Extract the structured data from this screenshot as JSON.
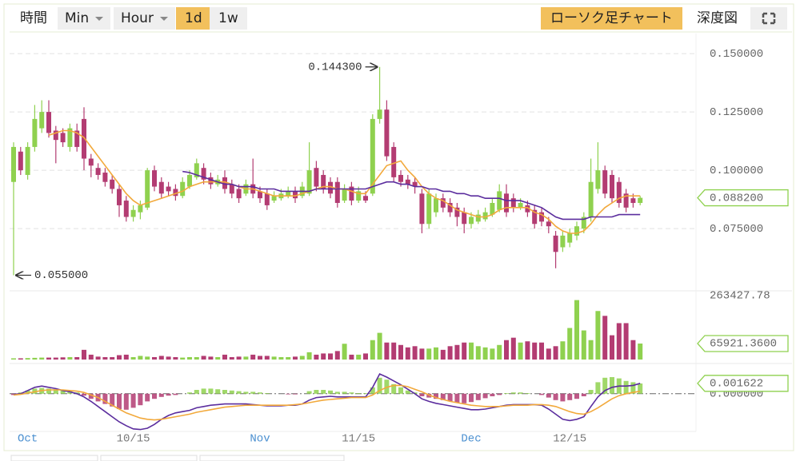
{
  "toolbar": {
    "time": "時間",
    "interval_min": "Min",
    "interval_hour": "Hour",
    "interval_day": "1d",
    "interval_week": "1w",
    "candle_chart": "ローソク足チャート",
    "depth_chart": "深度図"
  },
  "chart_data": [
    {
      "type": "candlestick",
      "categories": [
        null,
        null,
        "Oct",
        null,
        null,
        null,
        null,
        null,
        null,
        null,
        null,
        null,
        null,
        null,
        null,
        null,
        null,
        "10/15",
        null,
        null,
        null,
        null,
        null,
        null,
        null,
        null,
        null,
        null,
        null,
        null,
        null,
        null,
        null,
        null,
        null,
        "Nov",
        null,
        null,
        null,
        null,
        null,
        null,
        null,
        null,
        null,
        null,
        null,
        null,
        null,
        "11/15",
        null,
        null,
        null,
        null,
        null,
        null,
        null,
        null,
        null,
        null,
        null,
        null,
        null,
        null,
        null,
        "Dec",
        null,
        null,
        null,
        null,
        null,
        null,
        null,
        null,
        null,
        null,
        null,
        null,
        null,
        "12/15",
        null,
        null,
        null,
        null,
        null,
        null,
        null,
        null,
        null,
        null
      ],
      "open": [
        0.095,
        0.108,
        0.098,
        0.11,
        0.118,
        0.125,
        0.117,
        0.116,
        0.11,
        0.117,
        0.122,
        0.105,
        0.101,
        0.099,
        0.096,
        0.092,
        0.087,
        0.08,
        0.082,
        0.084,
        0.1,
        0.095,
        0.093,
        0.092,
        0.089,
        0.093,
        0.097,
        0.101,
        0.097,
        0.094,
        0.097,
        0.094,
        0.092,
        0.09,
        0.094,
        0.091,
        0.09,
        0.087,
        0.088,
        0.089,
        0.091,
        0.089,
        0.09,
        0.101,
        0.098,
        0.095,
        0.095,
        0.087,
        0.093,
        0.087,
        0.089,
        0.09,
        0.122,
        0.126,
        0.11,
        0.098,
        0.096,
        0.095,
        0.09,
        0.077,
        0.082,
        0.088,
        0.086,
        0.084,
        0.082,
        0.077,
        0.078,
        0.079,
        0.081,
        0.083,
        0.09,
        0.088,
        0.084,
        0.085,
        0.083,
        0.082,
        0.078,
        0.072,
        0.067,
        0.069,
        0.072,
        0.075,
        0.08,
        0.092,
        0.1,
        0.098,
        0.095,
        0.09,
        0.088,
        0.086
      ],
      "high": [
        0.112,
        0.11,
        0.112,
        0.128,
        0.13,
        0.13,
        0.119,
        0.118,
        0.12,
        0.12,
        0.127,
        0.107,
        0.103,
        0.101,
        0.098,
        0.094,
        0.089,
        0.085,
        0.087,
        0.101,
        0.102,
        0.097,
        0.095,
        0.094,
        0.097,
        0.1,
        0.105,
        0.103,
        0.099,
        0.098,
        0.1,
        0.096,
        0.094,
        0.096,
        0.105,
        0.093,
        0.092,
        0.091,
        0.092,
        0.093,
        0.093,
        0.095,
        0.112,
        0.104,
        0.1,
        0.097,
        0.097,
        0.094,
        0.095,
        0.093,
        0.091,
        0.124,
        0.1443,
        0.13,
        0.112,
        0.1,
        0.098,
        0.097,
        0.092,
        0.092,
        0.09,
        0.09,
        0.088,
        0.086,
        0.084,
        0.082,
        0.083,
        0.084,
        0.088,
        0.094,
        0.094,
        0.09,
        0.088,
        0.087,
        0.085,
        0.084,
        0.08,
        0.074,
        0.074,
        0.075,
        0.078,
        0.082,
        0.105,
        0.112,
        0.102,
        0.1,
        0.097,
        0.092,
        0.09,
        0.089
      ],
      "low": [
        0.055,
        0.098,
        0.096,
        0.108,
        0.116,
        0.114,
        0.103,
        0.11,
        0.108,
        0.108,
        0.1,
        0.097,
        0.096,
        0.093,
        0.09,
        0.08,
        0.078,
        0.078,
        0.079,
        0.083,
        0.091,
        0.088,
        0.089,
        0.087,
        0.088,
        0.092,
        0.096,
        0.094,
        0.092,
        0.093,
        0.09,
        0.088,
        0.086,
        0.089,
        0.088,
        0.086,
        0.083,
        0.086,
        0.087,
        0.088,
        0.086,
        0.088,
        0.089,
        0.091,
        0.09,
        0.088,
        0.084,
        0.086,
        0.085,
        0.086,
        0.086,
        0.089,
        0.12,
        0.104,
        0.095,
        0.093,
        0.092,
        0.09,
        0.073,
        0.075,
        0.08,
        0.082,
        0.08,
        0.076,
        0.073,
        0.075,
        0.077,
        0.078,
        0.08,
        0.082,
        0.08,
        0.082,
        0.083,
        0.08,
        0.075,
        0.076,
        0.073,
        0.058,
        0.065,
        0.067,
        0.07,
        0.073,
        0.078,
        0.09,
        0.088,
        0.086,
        0.084,
        0.082,
        0.084,
        0.085
      ],
      "close": [
        0.11,
        0.1,
        0.11,
        0.122,
        0.125,
        0.116,
        0.113,
        0.112,
        0.118,
        0.11,
        0.105,
        0.102,
        0.098,
        0.095,
        0.092,
        0.085,
        0.08,
        0.083,
        0.085,
        0.1,
        0.093,
        0.09,
        0.091,
        0.089,
        0.095,
        0.098,
        0.103,
        0.096,
        0.094,
        0.096,
        0.092,
        0.09,
        0.088,
        0.094,
        0.09,
        0.088,
        0.085,
        0.089,
        0.09,
        0.091,
        0.088,
        0.093,
        0.1,
        0.093,
        0.092,
        0.09,
        0.086,
        0.092,
        0.087,
        0.091,
        0.087,
        0.122,
        0.126,
        0.106,
        0.097,
        0.095,
        0.094,
        0.093,
        0.077,
        0.09,
        0.088,
        0.084,
        0.082,
        0.08,
        0.077,
        0.08,
        0.081,
        0.082,
        0.086,
        0.091,
        0.082,
        0.084,
        0.086,
        0.082,
        0.077,
        0.078,
        0.076,
        0.065,
        0.072,
        0.073,
        0.076,
        0.08,
        0.095,
        0.1,
        0.09,
        0.088,
        0.086,
        0.084,
        0.086,
        0.0882
      ],
      "up_color": "#8fd14f",
      "down_color": "#b33c72",
      "lines": [
        {
          "color": "#f2a93b",
          "values": [
            null,
            null,
            null,
            null,
            null,
            0.115,
            0.116,
            0.117,
            0.117,
            0.116,
            0.114,
            0.11,
            0.106,
            0.102,
            0.098,
            0.094,
            0.09,
            0.087,
            0.085,
            0.086,
            0.087,
            0.088,
            0.089,
            0.09,
            0.091,
            0.093,
            0.094,
            0.095,
            0.095,
            0.095,
            0.095,
            0.094,
            0.093,
            0.092,
            0.092,
            0.091,
            0.09,
            0.089,
            0.089,
            0.089,
            0.089,
            0.09,
            0.091,
            0.092,
            0.093,
            0.093,
            0.092,
            0.092,
            0.091,
            0.09,
            0.09,
            0.094,
            0.098,
            0.102,
            0.103,
            0.104,
            0.1,
            0.097,
            0.093,
            0.09,
            0.088,
            0.087,
            0.085,
            0.083,
            0.082,
            0.081,
            0.08,
            0.08,
            0.081,
            0.083,
            0.084,
            0.084,
            0.084,
            0.084,
            0.082,
            0.081,
            0.079,
            0.076,
            0.074,
            0.073,
            0.073,
            0.074,
            0.077,
            0.081,
            0.084,
            0.086,
            0.088,
            0.089,
            0.089,
            0.089
          ]
        },
        {
          "color": "#5b2d9e",
          "values": [
            null,
            null,
            null,
            null,
            null,
            null,
            null,
            null,
            null,
            null,
            null,
            null,
            null,
            null,
            null,
            null,
            null,
            null,
            null,
            null,
            null,
            null,
            null,
            null,
            0.0995,
            0.099,
            0.098,
            0.097,
            0.096,
            0.095,
            0.094,
            0.094,
            0.093,
            0.093,
            0.093,
            0.092,
            0.092,
            0.092,
            0.091,
            0.091,
            0.091,
            0.091,
            0.091,
            0.092,
            0.092,
            0.092,
            0.092,
            0.092,
            0.092,
            0.092,
            0.092,
            0.093,
            0.094,
            0.095,
            0.095,
            0.094,
            0.094,
            0.093,
            0.093,
            0.092,
            0.092,
            0.091,
            0.091,
            0.09,
            0.09,
            0.089,
            0.089,
            0.088,
            0.088,
            0.088,
            0.087,
            0.087,
            0.087,
            0.086,
            0.085,
            0.084,
            0.082,
            0.08,
            0.079,
            0.079,
            0.079,
            0.079,
            0.08,
            0.08,
            0.08,
            0.08,
            0.081,
            0.081,
            0.081,
            0.081
          ]
        }
      ],
      "ylim": [
        0.0497,
        0.1586
      ],
      "yticks": [
        {
          "value": 0.075,
          "label": "0.075000"
        },
        {
          "value": 0.1,
          "label": "0.100000"
        },
        {
          "value": 0.125,
          "label": "0.125000"
        },
        {
          "value": 0.15,
          "label": "0.150000"
        }
      ],
      "grid": true,
      "annotations": [
        {
          "value": 0.1443,
          "label": "0.144300"
        },
        {
          "value": 0.055,
          "label": "0.055000"
        },
        {
          "value": 0.0882,
          "label": "0.088200"
        }
      ]
    },
    {
      "type": "bar",
      "values": [
        5000,
        5000,
        6000,
        7000,
        8000,
        8000,
        8000,
        9000,
        10000,
        10000,
        40000,
        20000,
        12000,
        10000,
        10000,
        18000,
        20000,
        10000,
        15000,
        12000,
        10000,
        15000,
        12000,
        10000,
        8000,
        10000,
        10000,
        15000,
        12000,
        10000,
        20000,
        10000,
        12000,
        12000,
        20000,
        15000,
        15000,
        12000,
        10000,
        10000,
        12000,
        15000,
        30000,
        20000,
        25000,
        25000,
        35000,
        65000,
        20000,
        20000,
        25000,
        80000,
        110000,
        70000,
        70000,
        60000,
        50000,
        55000,
        45000,
        45000,
        50000,
        40000,
        55000,
        60000,
        70000,
        70000,
        55000,
        50000,
        45000,
        60000,
        80000,
        90000,
        70000,
        75000,
        70000,
        70000,
        45000,
        55000,
        75000,
        130000,
        245000,
        120000,
        80000,
        200000,
        180000,
        100000,
        150000,
        150000,
        80000,
        65921.36
      ],
      "ylim": [
        0,
        263427.78
      ],
      "yticks": [
        {
          "value": 263427.78,
          "label": "263427.78"
        }
      ],
      "grid": false,
      "annotations": [
        {
          "value": 65921.36,
          "label": "65921.3600"
        }
      ]
    },
    {
      "type": "combo",
      "histogram": [
        -0.0002,
        0.0002,
        0.0005,
        0.0008,
        0.0009,
        0.0008,
        0.0007,
        0.0005,
        0.0004,
        0.0002,
        -0.0003,
        -0.0008,
        -0.0012,
        -0.0016,
        -0.002,
        -0.0024,
        -0.0025,
        -0.0022,
        -0.0018,
        -0.0012,
        -0.0008,
        -0.0005,
        -0.0003,
        -0.0002,
        0,
        0.0002,
        0.0006,
        0.0008,
        0.0008,
        0.0007,
        0.0006,
        0.0005,
        0.0004,
        0.0003,
        0.0003,
        0.0002,
        0.0001,
        0,
        0,
        -0.0001,
        -0.0001,
        0,
        0.0004,
        0.0006,
        0.0006,
        0.0005,
        0.0003,
        0.0003,
        0.0002,
        0.0001,
        0.0001,
        0.001,
        0.0025,
        0.0022,
        0.0015,
        0.001,
        0.0005,
        0.0002,
        -0.0004,
        -0.0006,
        -0.0008,
        -0.001,
        -0.0012,
        -0.0014,
        -0.0015,
        -0.0013,
        -0.001,
        -0.0007,
        -0.0004,
        -0.0002,
        0.0001,
        0.0002,
        0.0002,
        0.0001,
        0,
        -0.0002,
        -0.0006,
        -0.001,
        -0.0012,
        -0.001,
        -0.0008,
        -0.0004,
        0.0006,
        0.0018,
        0.0025,
        0.0026,
        0.0024,
        0.002,
        0.0018,
        0.0016
      ],
      "lines": [
        {
          "color": "#5b2d9e",
          "values": [
            -0.0001,
            0,
            0.0005,
            0.001,
            0.0012,
            0.001,
            0.0008,
            0.0005,
            0.0003,
            0,
            -0.0005,
            -0.0012,
            -0.002,
            -0.0028,
            -0.0036,
            -0.0044,
            -0.005,
            -0.0055,
            -0.0056,
            -0.0054,
            -0.0048,
            -0.004,
            -0.0034,
            -0.003,
            -0.0028,
            -0.0026,
            -0.0022,
            -0.002,
            -0.0018,
            -0.0017,
            -0.0016,
            -0.0016,
            -0.0016,
            -0.0016,
            -0.0017,
            -0.0018,
            -0.0019,
            -0.0019,
            -0.0019,
            -0.0018,
            -0.0018,
            -0.0016,
            -0.001,
            -0.0006,
            -0.0005,
            -0.0004,
            -0.0005,
            -0.0005,
            -0.0005,
            -0.0005,
            -0.0005,
            0.001,
            0.0031,
            0.0026,
            0.002,
            0.0014,
            0.0007,
            0,
            -0.0008,
            -0.0012,
            -0.0015,
            -0.0017,
            -0.0019,
            -0.0021,
            -0.0023,
            -0.0025,
            -0.0025,
            -0.0024,
            -0.0022,
            -0.002,
            -0.0018,
            -0.0017,
            -0.0017,
            -0.0017,
            -0.0017,
            -0.0018,
            -0.0024,
            -0.0032,
            -0.004,
            -0.0042,
            -0.004,
            -0.0036,
            -0.002,
            -0.0005,
            0.0005,
            0.001,
            0.0012,
            0.0012,
            0.0013,
            0.001622
          ]
        },
        {
          "color": "#f2a93b",
          "values": [
            -0.0002,
            -0.0001,
            0.0001,
            0.0003,
            0.0005,
            0.0006,
            0.0006,
            0.0006,
            0.0005,
            0.0004,
            0.0002,
            -0.0002,
            -0.0006,
            -0.0012,
            -0.0018,
            -0.0024,
            -0.003,
            -0.0034,
            -0.0038,
            -0.004,
            -0.0041,
            -0.004,
            -0.0038,
            -0.0036,
            -0.0034,
            -0.0032,
            -0.0029,
            -0.0027,
            -0.0025,
            -0.0023,
            -0.0021,
            -0.002,
            -0.0019,
            -0.0018,
            -0.0018,
            -0.0018,
            -0.0018,
            -0.0018,
            -0.0018,
            -0.0018,
            -0.0017,
            -0.0016,
            -0.0014,
            -0.0012,
            -0.001,
            -0.0009,
            -0.0008,
            -0.0007,
            -0.0006,
            -0.0006,
            -0.0006,
            -0.0002,
            0.0005,
            0.001,
            0.0013,
            0.0013,
            0.0011,
            0.0007,
            0.0003,
            -0.0002,
            -0.0006,
            -0.0009,
            -0.0012,
            -0.0014,
            -0.0016,
            -0.0018,
            -0.0019,
            -0.002,
            -0.002,
            -0.002,
            -0.0019,
            -0.0018,
            -0.0018,
            -0.0018,
            -0.0017,
            -0.0017,
            -0.0018,
            -0.002,
            -0.0024,
            -0.0028,
            -0.0031,
            -0.0032,
            -0.0028,
            -0.0022,
            -0.0015,
            -0.0008,
            -0.0003,
            0,
            0.0002,
            0.0004
          ]
        }
      ],
      "ylim": [
        -0.0059,
        0.0041
      ],
      "yticks": [
        {
          "value": 0,
          "label": "0.000000"
        }
      ],
      "grid": true,
      "annotations": [
        {
          "value": 0.001622,
          "label": "0.001622"
        }
      ]
    }
  ]
}
